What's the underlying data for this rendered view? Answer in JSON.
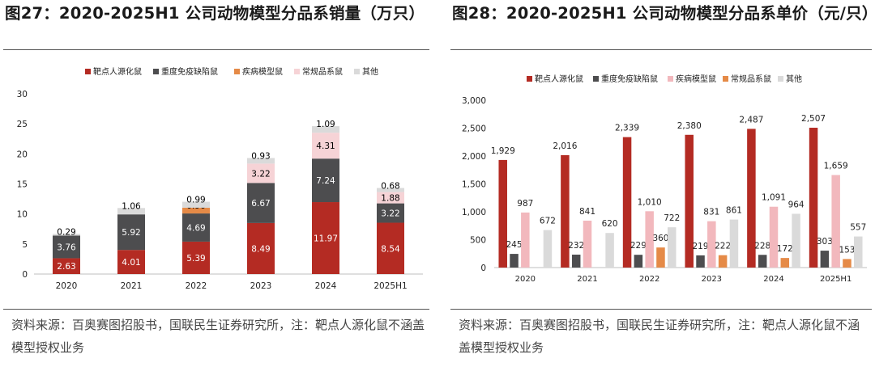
{
  "chart_data": [
    {
      "type": "stacked-bar",
      "title": "图27：2020-2025H1  公司动物模型分品系销量（万只）",
      "categories": [
        "2020",
        "2021",
        "2022",
        "2023",
        "2024",
        "2025H1"
      ],
      "series": [
        {
          "name": "靶点人源化鼠",
          "values": [
            2.63,
            4.01,
            5.39,
            8.49,
            11.97,
            8.54
          ],
          "color": "#b42b23",
          "label_color": "#ffffff"
        },
        {
          "name": "重度免疫缺陷鼠",
          "values": [
            3.76,
            5.92,
            4.69,
            6.67,
            7.24,
            3.22
          ],
          "color": "#4d4d4f",
          "label_color": "#ffffff"
        },
        {
          "name": "疾病模型鼠",
          "values": [
            0,
            0,
            0.96,
            0,
            0,
            0
          ],
          "color": "#e58a47",
          "label_color": "#000000"
        },
        {
          "name": "常规品系鼠",
          "values": [
            0,
            0,
            0,
            3.22,
            4.31,
            1.88
          ],
          "color": "#f6d3d6",
          "label_color": "#000000"
        },
        {
          "name": "其他",
          "values": [
            0.29,
            1.06,
            0.99,
            0.93,
            1.09,
            0.68
          ],
          "color": "#dadada",
          "label_color": "#000000"
        }
      ],
      "labels": [
        [
          "2.63",
          "4.01",
          "5.39",
          "8.49",
          "11.97",
          "8.54"
        ],
        [
          "3.76",
          "5.92",
          "4.69",
          "6.67",
          "7.24",
          "3.22"
        ],
        [
          "",
          "",
          "0.96",
          "",
          "",
          ""
        ],
        [
          "",
          "",
          "",
          "3.22",
          "4.31",
          "1.88"
        ],
        [
          "0.29",
          "1.06",
          "0.99",
          "0.93",
          "1.09",
          "0.68"
        ]
      ],
      "ylim": [
        0,
        30
      ],
      "yticks": [
        "0",
        "5",
        "10",
        "15",
        "20",
        "25",
        "30"
      ],
      "legend_position": "top",
      "source": "资料来源：百奥赛图招股书，国联民生证券研究所，注：靶点人源化鼠不涵盖模型授权业务"
    },
    {
      "type": "bar",
      "title": "图28：2020-2025H1  公司动物模型分品系单价（元/只）",
      "categories": [
        "2020",
        "2021",
        "2022",
        "2023",
        "2024",
        "2025H1"
      ],
      "series": [
        {
          "name": "靶点人源化鼠",
          "values": [
            1929,
            2016,
            2339,
            2380,
            2487,
            2507
          ],
          "color": "#b42b23"
        },
        {
          "name": "重度免疫缺陷鼠",
          "values": [
            245,
            232,
            229,
            219,
            228,
            303
          ],
          "color": "#4d4d4f"
        },
        {
          "name": "疾病模型鼠",
          "values": [
            987,
            841,
            1010,
            831,
            1091,
            1659
          ],
          "color": "#f2b8bd"
        },
        {
          "name": "常规品系鼠",
          "values": [
            0,
            0,
            360,
            222,
            172,
            153
          ],
          "color": "#e58a47"
        },
        {
          "name": "其他",
          "values": [
            672,
            620,
            722,
            861,
            964,
            557
          ],
          "color": "#dadada"
        }
      ],
      "labels": [
        [
          "1,929",
          "2,016",
          "2,339",
          "2,380",
          "2,487",
          "2,507"
        ],
        [
          "245",
          "232",
          "229",
          "219",
          "228",
          "303"
        ],
        [
          "987",
          "841",
          "1,010",
          "831",
          "1,091",
          "1,659"
        ],
        [
          "",
          "",
          "360",
          "222",
          "172",
          "153"
        ],
        [
          "672",
          "620",
          "722",
          "861",
          "964",
          "557"
        ]
      ],
      "ylim": [
        0,
        3000
      ],
      "yticks": [
        "0",
        "500",
        "1,000",
        "1,500",
        "2,000",
        "2,500",
        "3,000"
      ],
      "legend_position": "top",
      "source": "资料来源：百奥赛图招股书，国联民生证券研究所，注：靶点人源化鼠不涵盖模型授权业务"
    }
  ]
}
